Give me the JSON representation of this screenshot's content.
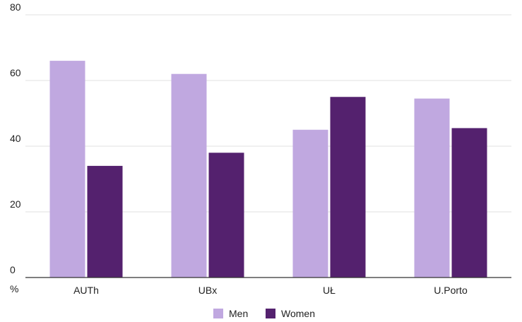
{
  "chart_data": {
    "type": "bar",
    "categories": [
      "AUTh",
      "UBx",
      "UŁ",
      "U.Porto"
    ],
    "series": [
      {
        "name": "Men",
        "values": [
          66,
          62,
          45,
          54.5
        ]
      },
      {
        "name": "Women",
        "values": [
          34,
          38,
          55,
          45.5
        ]
      }
    ],
    "yticks": [
      "0",
      "20",
      "40",
      "60",
      "80"
    ],
    "ylim": [
      0,
      80
    ],
    "yunit": "%",
    "grid": true,
    "legend_position": "bottom",
    "colors": {
      "Men": "#c0a8e0",
      "Women": "#54216e",
      "grid": "#e2e2e2",
      "axis": "#333333"
    }
  }
}
